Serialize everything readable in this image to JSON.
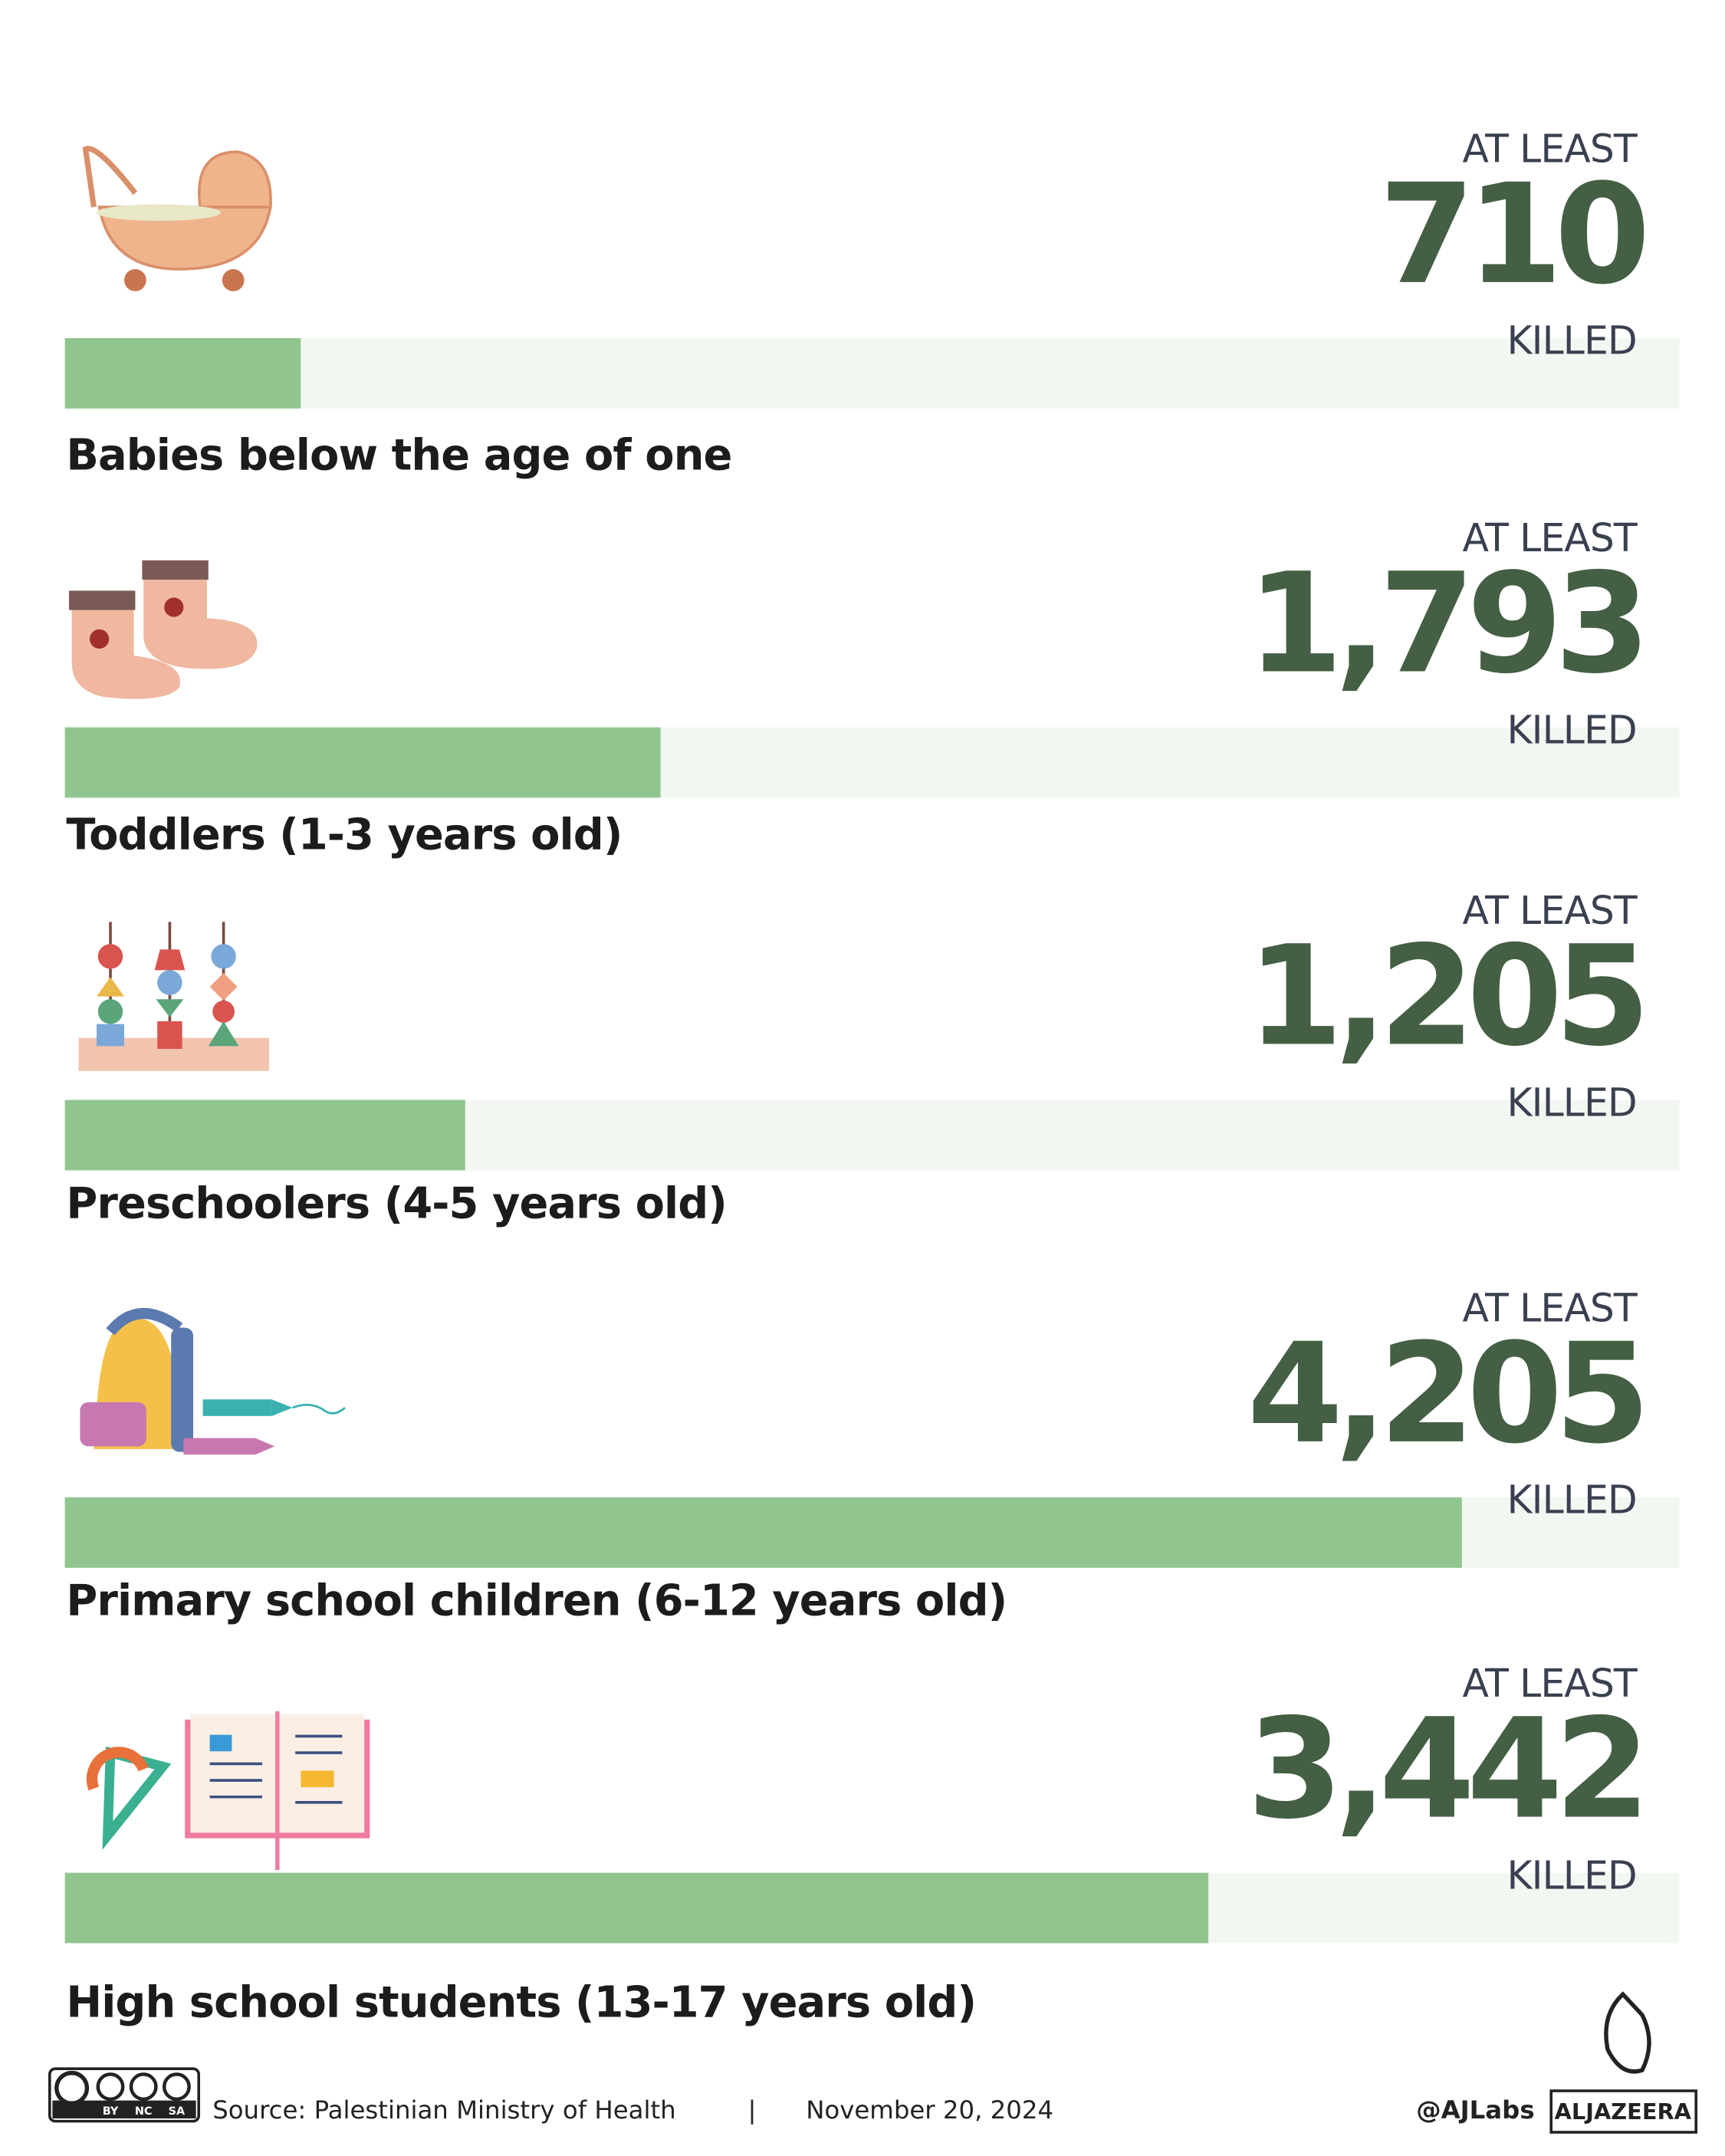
{
  "chart_data": {
    "type": "bar",
    "orientation": "horizontal",
    "categories": [
      "Babies below the age of one",
      "Toddlers (1-3 years old)",
      "Preschoolers (4-5 years old)",
      "Primary school children (6-12 years old)",
      "High school students (13-17 years old)"
    ],
    "values": [
      710,
      1793,
      1205,
      4205,
      3442
    ],
    "value_labels": [
      "710",
      "1,793",
      "1,205",
      "4,205",
      "3,442"
    ],
    "prefix": "AT LEAST",
    "suffix": "KILLED",
    "color": "#91c58f",
    "track_color": "#f2f7f1",
    "xlim": [
      0,
      4860
    ]
  },
  "footer": {
    "source": "Source:  Palestinian Ministry of Health",
    "separator": "|",
    "date": "November 20, 2024",
    "handle": "@AJLabs",
    "brand": "ALJAZEERA",
    "license": [
      "BY",
      "NC",
      "SA"
    ]
  }
}
